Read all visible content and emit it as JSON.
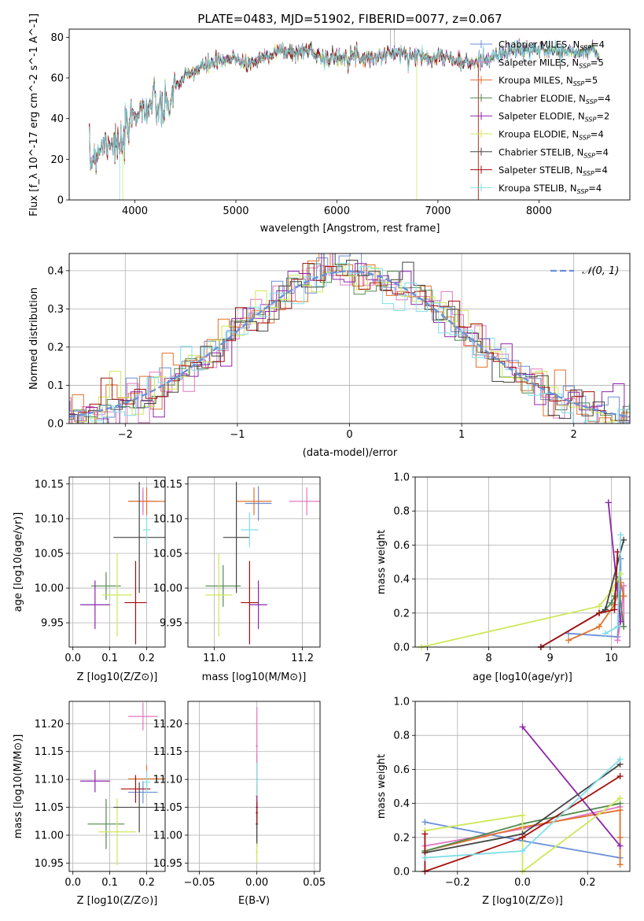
{
  "figure_title": "PLATE=0483, MJD=51902, FIBERID=0077, z=0.067",
  "models": [
    {
      "name": "Chabrier MILES",
      "nssp": "4",
      "color": "#6a8fd6"
    },
    {
      "name": "Salpeter MILES",
      "nssp": "5",
      "color": "#e377c2"
    },
    {
      "name": "Kroupa MILES",
      "nssp": "5",
      "color": "#e0722c"
    },
    {
      "name": "Chabrier ELODIE",
      "nssp": "4",
      "color": "#4f8a4f"
    },
    {
      "name": "Salpeter ELODIE",
      "nssp": "2",
      "color": "#8e24aa"
    },
    {
      "name": "Kroupa ELODIE",
      "nssp": "4",
      "color": "#cde85a"
    },
    {
      "name": "Chabrier STELIB",
      "nssp": "4",
      "color": "#444444"
    },
    {
      "name": "Salpeter STELIB",
      "nssp": "4",
      "color": "#a40f0f"
    },
    {
      "name": "Kroupa STELIB",
      "nssp": "4",
      "color": "#7fdfe8"
    }
  ],
  "chart_data": [
    {
      "type": "line",
      "panel": "spectrum",
      "title": "PLATE=0483, MJD=51902, FIBERID=0077, z=0.067",
      "xlabel": "wavelength [Angstrom, rest frame]",
      "ylabel": "Flux [f_λ 10^-17 erg cm^-2 s^-1 A^-1]",
      "xlim": [
        3350,
        8900
      ],
      "ylim": [
        0,
        84
      ],
      "xticks": [
        "4000",
        "5000",
        "6000",
        "7000",
        "8000"
      ],
      "yticks": [
        "0",
        "20",
        "40",
        "60",
        "80"
      ],
      "grid": false,
      "legend": "top-right",
      "data_x": [
        3550,
        3650,
        3750,
        3800,
        3850,
        3900,
        3950,
        4000,
        4100,
        4200,
        4300,
        4400,
        4500,
        4600,
        4700,
        4800,
        4900,
        5000,
        5100,
        5200,
        5300,
        5400,
        5500,
        5600,
        5700,
        5800,
        5900,
        6000,
        6100,
        6200,
        6300,
        6400,
        6500,
        6600,
        6700,
        6800,
        6900,
        7000,
        7100,
        7200,
        7300,
        7400,
        7500,
        7600,
        7700,
        7800,
        7900,
        8000,
        8100,
        8200,
        8300,
        8400,
        8500,
        8600
      ],
      "data_y": [
        18,
        26,
        30,
        28,
        24,
        30,
        38,
        44,
        45,
        47,
        42,
        56,
        60,
        64,
        66,
        68,
        68,
        70,
        67,
        68,
        71,
        73,
        73,
        72,
        74,
        72,
        69,
        70,
        71,
        71,
        70,
        70,
        72,
        72,
        71,
        71,
        70,
        71,
        70,
        68,
        67,
        68,
        70,
        71,
        73,
        74,
        73,
        74,
        74,
        73,
        73,
        72,
        74,
        72
      ]
    },
    {
      "type": "bar",
      "panel": "residual_histogram",
      "xlabel": "(data-model)/error",
      "ylabel": "Normed distribution",
      "xlim": [
        -2.5,
        2.5
      ],
      "ylim": [
        0,
        0.445
      ],
      "xticks": [
        "−2",
        "−1",
        "0",
        "1",
        "2"
      ],
      "yticks": [
        "0.0",
        "0.1",
        "0.2",
        "0.3",
        "0.4"
      ],
      "grid": true,
      "legend_label": "𝒩(0, 1)",
      "reference_curve": "standard normal, mean 0, sigma 1",
      "bin_width": 0.1
    },
    {
      "type": "scatter",
      "panel": "age_vs_Z",
      "xlabel": "Z [log10(Z/Z⊙)]",
      "ylabel": "age [log10(age/yr)]",
      "xlim": [
        -0.01,
        0.25
      ],
      "ylim": [
        9.915,
        10.16
      ],
      "xticks": [
        "0.0",
        "0.1",
        "0.2"
      ],
      "yticks": [
        "9.95",
        "10.00",
        "10.05",
        "10.10",
        "10.15"
      ],
      "points": [
        {
          "x": 0.19,
          "y": 10.125,
          "xerr": 0.04,
          "yerr": 0.015
        },
        {
          "x": 0.19,
          "y": 10.125,
          "xerr": 0.02,
          "yerr": 0.02
        },
        {
          "x": 0.2,
          "y": 10.125,
          "xerr": 0.05,
          "yerr": 0.02
        },
        {
          "x": 0.09,
          "y": 10.003,
          "xerr": 0.04,
          "yerr": 0.02
        },
        {
          "x": 0.06,
          "y": 9.976,
          "xerr": 0.04,
          "yerr": 0.035
        },
        {
          "x": 0.12,
          "y": 9.99,
          "xerr": 0.04,
          "yerr": 0.06
        },
        {
          "x": 0.18,
          "y": 10.073,
          "xerr": 0.07,
          "yerr": 0.08
        },
        {
          "x": 0.17,
          "y": 9.979,
          "xerr": 0.03,
          "yerr": 0.06
        },
        {
          "x": 0.2,
          "y": 10.084,
          "xerr": 0.01,
          "yerr": 0.02
        }
      ]
    },
    {
      "type": "scatter",
      "panel": "age_vs_mass",
      "xlabel": "mass [log10(M/M⊙)]",
      "ylabel": "",
      "xlim": [
        10.94,
        11.24
      ],
      "ylim": [
        9.915,
        10.16
      ],
      "xticks": [
        "11.0",
        "11.2"
      ],
      "yticks": [
        "9.95",
        "10.00",
        "10.05",
        "10.10",
        "10.15"
      ],
      "points": [
        {
          "x": 11.1,
          "y": 10.122,
          "xerr": 0.03,
          "yerr": 0.025
        },
        {
          "x": 11.21,
          "y": 10.125,
          "xerr": 0.04,
          "yerr": 0.02
        },
        {
          "x": 11.09,
          "y": 10.125,
          "xerr": 0.04,
          "yerr": 0.02
        },
        {
          "x": 11.02,
          "y": 10.003,
          "xerr": 0.04,
          "yerr": 0.03
        },
        {
          "x": 11.1,
          "y": 9.976,
          "xerr": 0.02,
          "yerr": 0.035
        },
        {
          "x": 11.01,
          "y": 9.99,
          "xerr": 0.03,
          "yerr": 0.06
        },
        {
          "x": 11.05,
          "y": 10.073,
          "xerr": 0.03,
          "yerr": 0.08
        },
        {
          "x": 11.08,
          "y": 9.979,
          "xerr": 0.02,
          "yerr": 0.06
        },
        {
          "x": 11.08,
          "y": 10.084,
          "xerr": 0.02,
          "yerr": 0.025
        }
      ]
    },
    {
      "type": "line",
      "panel": "mass_weight_vs_age",
      "xlabel": "age [log10(age/yr)]",
      "ylabel": "mass weight",
      "xlim": [
        6.8,
        10.3
      ],
      "ylim": [
        0,
        1
      ],
      "xticks": [
        "7",
        "8",
        "9",
        "10"
      ],
      "yticks": [
        "0.0",
        "0.2",
        "0.4",
        "0.6",
        "0.8",
        "1.0"
      ],
      "series": [
        {
          "x": [
            9.3,
            10.1,
            10.15,
            10.15
          ],
          "y": [
            0.08,
            0.06,
            0.35,
            0.52
          ]
        },
        {
          "x": [
            10.1,
            10.15,
            10.2,
            10.2,
            10.2
          ],
          "y": [
            0.04,
            0.16,
            0.36,
            0.3,
            0.12
          ]
        },
        {
          "x": [
            9.3,
            9.8,
            10.05,
            10.15,
            10.2
          ],
          "y": [
            0.04,
            0.12,
            0.25,
            0.38,
            0.3
          ]
        },
        {
          "x": [
            9.9,
            10.0,
            10.05,
            10.1,
            10.2
          ],
          "y": [
            0.22,
            0.26,
            0.3,
            0.4,
            0.12
          ]
        },
        {
          "x": [
            9.95,
            10.15
          ],
          "y": [
            0.85,
            0.15
          ]
        },
        {
          "x": [
            6.9,
            9.8,
            10.0,
            10.15
          ],
          "y": [
            0.0,
            0.24,
            0.33,
            0.43
          ]
        },
        {
          "x": [
            8.85,
            9.8,
            9.9,
            10.2
          ],
          "y": [
            0.0,
            0.2,
            0.22,
            0.63
          ]
        },
        {
          "x": [
            8.85,
            9.8,
            10.05,
            10.1
          ],
          "y": [
            0.0,
            0.2,
            0.22,
            0.56
          ]
        },
        {
          "x": [
            9.9,
            10.1,
            10.15
          ],
          "y": [
            0.08,
            0.12,
            0.66
          ]
        }
      ]
    },
    {
      "type": "scatter",
      "panel": "mass_vs_Z",
      "xlabel": "Z [log10(Z/Z⊙)]",
      "ylabel": "mass [log10(M/M⊙)]",
      "xlim": [
        -0.01,
        0.25
      ],
      "ylim": [
        10.935,
        11.24
      ],
      "xticks": [
        "0.0",
        "0.1",
        "0.2"
      ],
      "yticks": [
        "10.95",
        "11.00",
        "11.05",
        "11.10",
        "11.15",
        "11.20"
      ],
      "points": [
        {
          "x": 0.19,
          "y": 11.077,
          "xerr": 0.04,
          "yerr": 0.02
        },
        {
          "x": 0.19,
          "y": 11.213,
          "xerr": 0.04,
          "yerr": 0.025
        },
        {
          "x": 0.2,
          "y": 11.101,
          "xerr": 0.05,
          "yerr": 0.025
        },
        {
          "x": 0.09,
          "y": 11.02,
          "xerr": 0.05,
          "yerr": 0.045
        },
        {
          "x": 0.06,
          "y": 11.097,
          "xerr": 0.04,
          "yerr": 0.02
        },
        {
          "x": 0.12,
          "y": 11.006,
          "xerr": 0.05,
          "yerr": 0.06
        },
        {
          "x": 0.18,
          "y": 11.05,
          "xerr": 0.07,
          "yerr": 0.045
        },
        {
          "x": 0.17,
          "y": 11.083,
          "xerr": 0.04,
          "yerr": 0.025
        },
        {
          "x": 0.2,
          "y": 11.095,
          "xerr": 0.01,
          "yerr": 0.02
        }
      ]
    },
    {
      "type": "scatter",
      "panel": "mass_vs_EBV",
      "xlabel": "E(B-V)",
      "ylabel": "",
      "xlim": [
        -0.06,
        0.055
      ],
      "ylim": [
        10.935,
        11.24
      ],
      "xticks": [
        "−0.05",
        "0.00",
        "0.05"
      ],
      "yticks": [
        "10.95",
        "11.00",
        "11.05",
        "11.10",
        "11.15",
        "11.20"
      ],
      "points": [
        {
          "x": 0.0,
          "y": 11.1,
          "xerr": 0.001,
          "yerr": 0.045
        },
        {
          "x": 0.0,
          "y": 11.16,
          "xerr": 0.001,
          "yerr": 0.07
        },
        {
          "x": 0.0,
          "y": 11.07,
          "xerr": 0.001,
          "yerr": 0.02
        },
        {
          "x": 0.0,
          "y": 11.02,
          "xerr": 0.001,
          "yerr": 0.04
        },
        {
          "x": 0.0,
          "y": 11.05,
          "xerr": 0.001,
          "yerr": 0.02
        },
        {
          "x": 0.0,
          "y": 10.97,
          "xerr": 0.001,
          "yerr": 0.02
        },
        {
          "x": 0.0,
          "y": 11.02,
          "xerr": 0.001,
          "yerr": 0.035
        },
        {
          "x": 0.0,
          "y": 11.04,
          "xerr": 0.001,
          "yerr": 0.02
        },
        {
          "x": 0.0,
          "y": 11.1,
          "xerr": 0.001,
          "yerr": 0.03
        }
      ]
    },
    {
      "type": "line",
      "panel": "mass_weight_vs_Z",
      "xlabel": "Z [log10(Z/Z⊙)]",
      "ylabel": "mass weight",
      "xlim": [
        -0.33,
        0.33
      ],
      "ylim": [
        0,
        1
      ],
      "xticks": [
        "−0.2",
        "0.0",
        "0.2"
      ],
      "yticks": [
        "0.0",
        "0.2",
        "0.4",
        "0.6",
        "0.8",
        "1.0"
      ],
      "series": [
        {
          "x": [
            -0.3,
            0.0,
            0.3
          ],
          "y": [
            0.29,
            0.18,
            0.08
          ]
        },
        {
          "x": [
            -0.3,
            0.0,
            0.3
          ],
          "y": [
            0.15,
            0.25,
            0.38
          ]
        },
        {
          "x": [
            -0.3,
            0.0,
            0.3,
            0.3,
            0.3
          ],
          "y": [
            0.12,
            0.26,
            0.36,
            0.2,
            0.04
          ]
        },
        {
          "x": [
            -0.3,
            0.0,
            0.3
          ],
          "y": [
            0.12,
            0.28,
            0.4
          ]
        },
        {
          "x": [
            0.0,
            0.3
          ],
          "y": [
            0.85,
            0.15
          ]
        },
        {
          "x": [
            -0.3,
            0.0,
            0.0,
            0.3
          ],
          "y": [
            0.24,
            0.33,
            0.0,
            0.43
          ]
        },
        {
          "x": [
            -0.3,
            0.0,
            0.3
          ],
          "y": [
            0.11,
            0.22,
            0.63
          ]
        },
        {
          "x": [
            -0.3,
            -0.3,
            0.0,
            0.3
          ],
          "y": [
            0.22,
            0.0,
            0.2,
            0.56
          ]
        },
        {
          "x": [
            -0.3,
            0.0,
            0.3
          ],
          "y": [
            0.08,
            0.12,
            0.66
          ]
        }
      ]
    }
  ]
}
